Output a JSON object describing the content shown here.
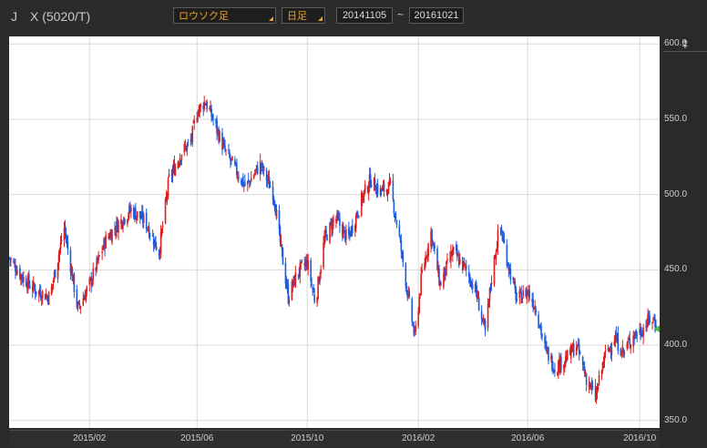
{
  "header": {
    "symbol_prefix": "J",
    "symbol": "X (5020/T)",
    "chart_type_select": "ロウソク足",
    "period_select": "日足",
    "date_from": "20141105",
    "date_sep": "~",
    "date_to": "20161021",
    "resize_glyph": "‡"
  },
  "colors": {
    "up": "#dd1e1e",
    "down": "#1a5be0",
    "grid": "#d9d9d9",
    "last_marker": "#3cc23c"
  },
  "chart_data": {
    "type": "candlestick",
    "ylim": [
      345,
      605
    ],
    "y_ticks": [
      "600.0",
      "550.0",
      "500.0",
      "450.0",
      "400.0",
      "350.0"
    ],
    "y_tick_values": [
      600,
      550,
      500,
      450,
      400,
      350
    ],
    "x_ticks": [
      "2015/02",
      "2015/06",
      "2015/10",
      "2016/02",
      "2016/06",
      "2016/10"
    ],
    "x_tick_dates": [
      "2015-02-02",
      "2015-06-01",
      "2015-10-01",
      "2016-02-01",
      "2016-06-01",
      "2016-10-03"
    ],
    "date_range": [
      "2014-11-05",
      "2016-10-21"
    ],
    "grid": true,
    "series": [
      {
        "kind": "approx_close_path",
        "points": [
          [
            "2014-11-05",
            458
          ],
          [
            "2014-11-20",
            445
          ],
          [
            "2014-12-05",
            436
          ],
          [
            "2014-12-20",
            432
          ],
          [
            "2015-01-05",
            478
          ],
          [
            "2015-01-20",
            424
          ],
          [
            "2015-02-02",
            440
          ],
          [
            "2015-02-20",
            470
          ],
          [
            "2015-03-05",
            480
          ],
          [
            "2015-03-20",
            490
          ],
          [
            "2015-04-05",
            482
          ],
          [
            "2015-04-20",
            462
          ],
          [
            "2015-05-01",
            510
          ],
          [
            "2015-05-15",
            528
          ],
          [
            "2015-05-25",
            535
          ],
          [
            "2015-06-01",
            555
          ],
          [
            "2015-06-10",
            562
          ],
          [
            "2015-06-20",
            548
          ],
          [
            "2015-07-01",
            530
          ],
          [
            "2015-07-15",
            515
          ],
          [
            "2015-07-25",
            505
          ],
          [
            "2015-08-10",
            520
          ],
          [
            "2015-08-25",
            500
          ],
          [
            "2015-09-01",
            468
          ],
          [
            "2015-09-10",
            432
          ],
          [
            "2015-09-20",
            448
          ],
          [
            "2015-10-01",
            455
          ],
          [
            "2015-10-10",
            428
          ],
          [
            "2015-10-20",
            470
          ],
          [
            "2015-11-01",
            485
          ],
          [
            "2015-11-15",
            470
          ],
          [
            "2015-12-01",
            498
          ],
          [
            "2015-12-10",
            510
          ],
          [
            "2015-12-20",
            502
          ],
          [
            "2016-01-01",
            505
          ],
          [
            "2016-01-10",
            475
          ],
          [
            "2016-01-20",
            435
          ],
          [
            "2016-01-28",
            405
          ],
          [
            "2016-02-05",
            448
          ],
          [
            "2016-02-15",
            475
          ],
          [
            "2016-02-25",
            440
          ],
          [
            "2016-03-10",
            462
          ],
          [
            "2016-03-25",
            450
          ],
          [
            "2016-04-05",
            435
          ],
          [
            "2016-04-15",
            408
          ],
          [
            "2016-04-22",
            445
          ],
          [
            "2016-05-01",
            480
          ],
          [
            "2016-05-10",
            455
          ],
          [
            "2016-05-20",
            430
          ],
          [
            "2016-06-01",
            436
          ],
          [
            "2016-06-10",
            425
          ],
          [
            "2016-06-20",
            398
          ],
          [
            "2016-07-01",
            385
          ],
          [
            "2016-07-15",
            392
          ],
          [
            "2016-07-25",
            400
          ],
          [
            "2016-08-05",
            378
          ],
          [
            "2016-08-15",
            365
          ],
          [
            "2016-08-25",
            392
          ],
          [
            "2016-09-05",
            405
          ],
          [
            "2016-09-15",
            395
          ],
          [
            "2016-09-25",
            406
          ],
          [
            "2016-10-05",
            410
          ],
          [
            "2016-10-15",
            418
          ],
          [
            "2016-10-21",
            415
          ]
        ]
      }
    ]
  }
}
